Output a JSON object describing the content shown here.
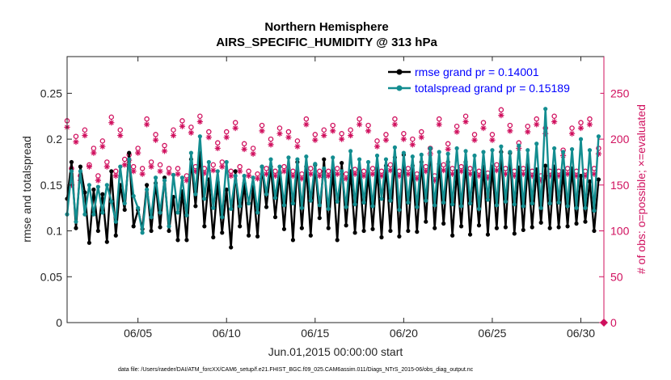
{
  "chart_data": {
    "type": "line",
    "title": "Northern Hemisphere",
    "subtitle": "AIRS_SPECIFIC_HUMIDITY @ 313 hPa",
    "xlabel": "Jun.01,2015 00:00:00 start",
    "ylabel": "rmse and totalspread",
    "ylabel_right": "# of obs: o=possible; ×=evaluated",
    "xlim": [
      1,
      31.3
    ],
    "ylim": [
      0,
      0.29
    ],
    "ylim_right": [
      0,
      290
    ],
    "x_ticks": [
      5,
      10,
      15,
      20,
      25,
      30
    ],
    "x_tick_labels": [
      "06/05",
      "06/10",
      "06/15",
      "06/20",
      "06/25",
      "06/30"
    ],
    "y_ticks": [
      0,
      0.05,
      0.1,
      0.15,
      0.2,
      0.25
    ],
    "y_tick_labels": [
      "0",
      "0.05",
      "0.1",
      "0.15",
      "0.2",
      "0.25"
    ],
    "y_right_ticks": [
      0,
      50,
      100,
      150,
      200,
      250
    ],
    "y_right_tick_labels": [
      "0",
      "50",
      "100",
      "150",
      "200",
      "250"
    ],
    "legend_position": "top-right",
    "footnote": "data file: /Users/raeder/DAI/ATM_forcXX/CAM6_setup/f.e21.FHIST_BGC.f09_025.CAM6assim.011/Diags_NTrS_2015-06/obs_diag_output.nc",
    "series": [
      {
        "name": "rmse grand pr = 0.14001",
        "color": "#000000",
        "axis": "left",
        "marker": "filled-circle",
        "values": [
          0.135,
          0.175,
          0.103,
          0.17,
          0.142,
          0.087,
          0.145,
          0.1,
          0.14,
          0.088,
          0.165,
          0.095,
          0.15,
          0.123,
          0.185,
          0.105,
          0.123,
          0.102,
          0.15,
          0.1,
          0.152,
          0.104,
          0.158,
          0.1,
          0.137,
          0.09,
          0.143,
          0.09,
          0.178,
          0.127,
          0.185,
          0.105,
          0.156,
          0.093,
          0.153,
          0.098,
          0.145,
          0.082,
          0.165,
          0.105,
          0.152,
          0.095,
          0.148,
          0.094,
          0.17,
          0.126,
          0.17,
          0.115,
          0.163,
          0.102,
          0.168,
          0.09,
          0.175,
          0.103,
          0.17,
          0.095,
          0.172,
          0.114,
          0.178,
          0.103,
          0.166,
          0.09,
          0.174,
          0.106,
          0.165,
          0.098,
          0.167,
          0.1,
          0.163,
          0.102,
          0.168,
          0.093,
          0.171,
          0.1,
          0.18,
          0.094,
          0.183,
          0.1,
          0.171,
          0.099,
          0.175,
          0.11,
          0.19,
          0.103,
          0.173,
          0.108,
          0.175,
          0.095,
          0.165,
          0.105,
          0.175,
          0.096,
          0.163,
          0.106,
          0.17,
          0.096,
          0.17,
          0.103,
          0.186,
          0.104,
          0.185,
          0.097,
          0.169,
          0.101,
          0.172,
          0.104,
          0.167,
          0.109,
          0.171,
          0.103,
          0.17,
          0.104,
          0.165,
          0.105,
          0.168,
          0.108,
          0.16,
          0.11,
          0.154,
          0.1,
          0.156
        ]
      },
      {
        "name": "totalspread grand pr = 0.15189",
        "color": "#138d90",
        "axis": "left",
        "marker": "filled-circle",
        "values": [
          0.118,
          0.165,
          0.11,
          0.165,
          0.118,
          0.15,
          0.118,
          0.148,
          0.12,
          0.15,
          0.132,
          0.11,
          0.17,
          0.13,
          0.178,
          0.138,
          0.125,
          0.098,
          0.145,
          0.115,
          0.158,
          0.12,
          0.155,
          0.105,
          0.161,
          0.12,
          0.158,
          0.117,
          0.185,
          0.14,
          0.203,
          0.135,
          0.175,
          0.125,
          0.165,
          0.115,
          0.175,
          0.124,
          0.16,
          0.127,
          0.16,
          0.13,
          0.158,
          0.12,
          0.17,
          0.14,
          0.178,
          0.136,
          0.17,
          0.128,
          0.18,
          0.13,
          0.178,
          0.125,
          0.181,
          0.133,
          0.173,
          0.128,
          0.168,
          0.124,
          0.18,
          0.132,
          0.165,
          0.126,
          0.187,
          0.129,
          0.178,
          0.131,
          0.175,
          0.127,
          0.182,
          0.135,
          0.178,
          0.133,
          0.191,
          0.123,
          0.185,
          0.131,
          0.181,
          0.126,
          0.183,
          0.133,
          0.19,
          0.128,
          0.186,
          0.131,
          0.184,
          0.129,
          0.19,
          0.127,
          0.187,
          0.13,
          0.182,
          0.124,
          0.186,
          0.134,
          0.188,
          0.128,
          0.192,
          0.132,
          0.186,
          0.129,
          0.193,
          0.127,
          0.188,
          0.13,
          0.195,
          0.125,
          0.233,
          0.13,
          0.19,
          0.131,
          0.186,
          0.127,
          0.189,
          0.125,
          0.2,
          0.125,
          0.188,
          0.122,
          0.203
        ]
      },
      {
        "name": "obs possible",
        "color": "#d0105e",
        "axis": "right",
        "marker": "open-circle",
        "values": [
          220,
          168,
          203,
          160,
          210,
          172,
          190,
          160,
          198,
          175,
          224,
          165,
          210,
          178,
          183,
          170,
          190,
          168,
          222,
          175,
          205,
          172,
          193,
          168,
          210,
          168,
          220,
          160,
          213,
          170,
          225,
          168,
          208,
          172,
          196,
          175,
          208,
          165,
          218,
          170,
          195,
          165,
          190,
          162,
          215,
          168,
          200,
          165,
          212,
          170,
          208,
          165,
          198,
          162,
          222,
          168,
          205,
          165,
          210,
          165,
          215,
          168,
          206,
          162,
          210,
          167,
          222,
          165,
          215,
          168,
          198,
          165,
          205,
          172,
          222,
          165,
          206,
          168,
          200,
          162,
          208,
          170,
          190,
          160,
          222,
          172,
          195,
          168,
          214,
          170,
          225,
          168,
          205,
          165,
          218,
          163,
          205,
          172,
          232,
          168,
          215,
          165,
          196,
          168,
          214,
          165,
          222,
          160,
          212,
          165,
          225,
          165,
          188,
          168,
          212,
          165,
          218,
          165,
          222,
          168,
          190
        ]
      },
      {
        "name": "obs evaluated",
        "color": "#d0105e",
        "axis": "right",
        "marker": "asterisk",
        "values": [
          213,
          150,
          197,
          155,
          204,
          170,
          185,
          155,
          192,
          170,
          218,
          160,
          204,
          172,
          177,
          165,
          185,
          162,
          216,
          170,
          199,
          165,
          187,
          163,
          204,
          162,
          214,
          155,
          207,
          165,
          219,
          163,
          202,
          166,
          190,
          170,
          202,
          160,
          212,
          165,
          189,
          160,
          184,
          157,
          209,
          162,
          194,
          160,
          206,
          165,
          202,
          160,
          192,
          157,
          216,
          162,
          199,
          160,
          204,
          160,
          209,
          162,
          200,
          157,
          204,
          162,
          216,
          160,
          209,
          162,
          192,
          160,
          199,
          166,
          216,
          160,
          200,
          162,
          194,
          157,
          202,
          165,
          184,
          155,
          216,
          166,
          189,
          162,
          208,
          165,
          219,
          162,
          199,
          160,
          212,
          158,
          199,
          166,
          226,
          162,
          209,
          160,
          190,
          162,
          208,
          160,
          216,
          155,
          206,
          160,
          219,
          160,
          182,
          162,
          206,
          160,
          212,
          160,
          216,
          162,
          184
        ]
      }
    ],
    "x": [
      1.0,
      1.25,
      1.5,
      1.75,
      2.0,
      2.25,
      2.5,
      2.75,
      3.0,
      3.25,
      3.5,
      3.75,
      4.0,
      4.25,
      4.5,
      4.75,
      5.0,
      5.25,
      5.5,
      5.75,
      6.0,
      6.25,
      6.5,
      6.75,
      7.0,
      7.25,
      7.5,
      7.75,
      8.0,
      8.25,
      8.5,
      8.75,
      9.0,
      9.25,
      9.5,
      9.75,
      10.0,
      10.25,
      10.5,
      10.75,
      11.0,
      11.25,
      11.5,
      11.75,
      12.0,
      12.25,
      12.5,
      12.75,
      13.0,
      13.25,
      13.5,
      13.75,
      14.0,
      14.25,
      14.5,
      14.75,
      15.0,
      15.25,
      15.5,
      15.75,
      16.0,
      16.25,
      16.5,
      16.75,
      17.0,
      17.25,
      17.5,
      17.75,
      18.0,
      18.25,
      18.5,
      18.75,
      19.0,
      19.25,
      19.5,
      19.75,
      20.0,
      20.25,
      20.5,
      20.75,
      21.0,
      21.25,
      21.5,
      21.75,
      22.0,
      22.25,
      22.5,
      22.75,
      23.0,
      23.25,
      23.5,
      23.75,
      24.0,
      24.25,
      24.5,
      24.75,
      25.0,
      25.25,
      25.5,
      25.75,
      26.0,
      26.25,
      26.5,
      26.75,
      27.0,
      27.25,
      27.5,
      27.75,
      28.0,
      28.25,
      28.5,
      28.75,
      29.0,
      29.25,
      29.5,
      29.75,
      30.0,
      30.25,
      30.5,
      30.75,
      31.0
    ]
  }
}
